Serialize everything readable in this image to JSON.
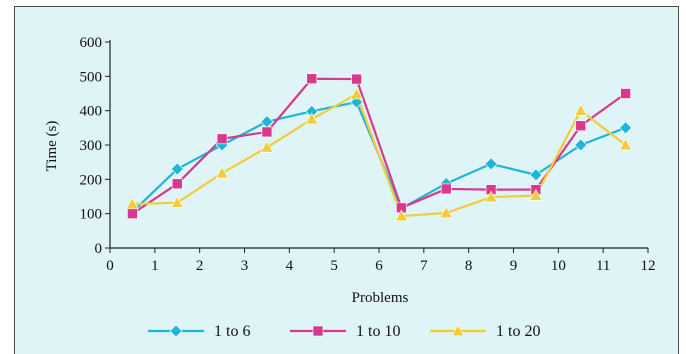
{
  "chart_data": {
    "type": "line",
    "xlabel": "Problems",
    "ylabel": "Time (s)",
    "xlim": [
      0,
      12
    ],
    "ylim": [
      0,
      600
    ],
    "xticks": [
      0,
      1,
      2,
      3,
      4,
      5,
      6,
      7,
      8,
      9,
      10,
      11,
      12
    ],
    "yticks": [
      0,
      100,
      200,
      300,
      400,
      500,
      600
    ],
    "x": [
      0.5,
      1.5,
      2.5,
      3.5,
      4.5,
      5.5,
      6.5,
      7.5,
      8.5,
      9.5,
      10.5,
      11.5
    ],
    "grid": false,
    "legend": "bottom",
    "series": [
      {
        "name": "1 to 6",
        "color": "#1fb5d6",
        "marker": "diamond",
        "values": [
          105,
          230,
          300,
          368,
          398,
          425,
          115,
          188,
          245,
          213,
          300,
          350
        ]
      },
      {
        "name": "1 to 10",
        "color": "#d63a8c",
        "marker": "square",
        "values": [
          100,
          187,
          318,
          338,
          493,
          492,
          117,
          172,
          170,
          170,
          356,
          450
        ]
      },
      {
        "name": "1 to 20",
        "color": "#f2cd3a",
        "marker": "triangle",
        "values": [
          128,
          132,
          218,
          293,
          375,
          448,
          93,
          102,
          148,
          153,
          400,
          300
        ]
      }
    ]
  }
}
